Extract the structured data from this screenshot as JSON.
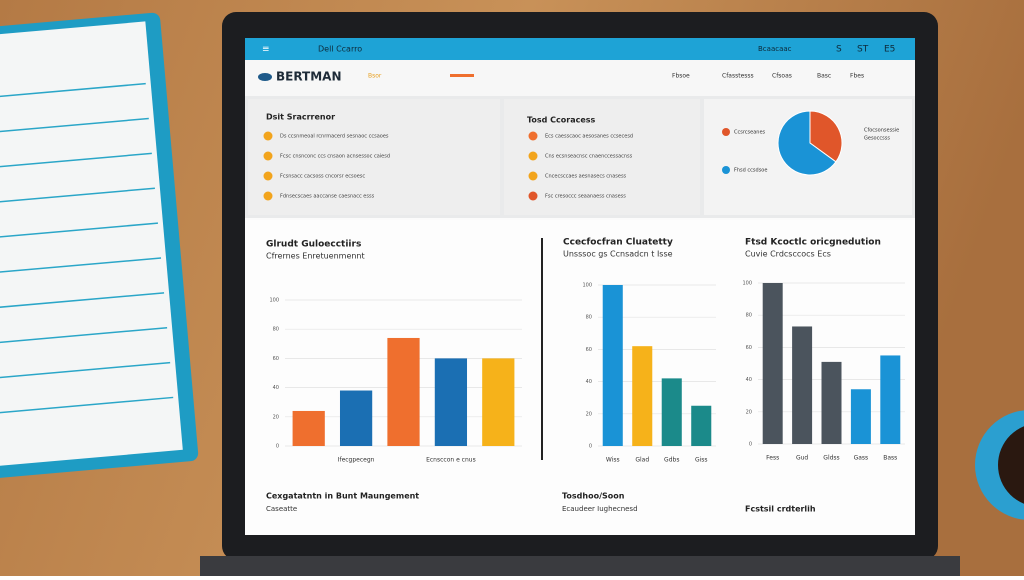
{
  "topbar": {
    "title": "Dell Ccarro",
    "right": [
      "Bcaacaac",
      "S",
      "ST",
      "E5"
    ]
  },
  "header": {
    "logo": "BERTMAN",
    "tag": "Bsor",
    "nav": [
      "Fbsoe",
      "Cfasstesss",
      "Cfsoas",
      "Basc",
      "Fbes"
    ]
  },
  "panels": [
    {
      "title": "Dsit Sracrrenor",
      "items": [
        "Ds ccsnmeoal rcnrmacerd sesnaoc ccsaoes",
        "Fcsc cnsnconc ccs cnsaon acnsessoc caiesd",
        "Fcsnsacc cacsoss cncorsr ecsoesc",
        "Fdnsecscaes aaccanse caesnacc esss"
      ]
    },
    {
      "title": "Tosd Ccoracess",
      "items": [
        "Ecs caesscaoc aesosanes ccsecesd",
        "Cns ecsnseacnsc cnaenccessacnss",
        "Cncecsccaes aesnasecs cnasess",
        "Fsc cresoccc seaanaess cnasess"
      ]
    }
  ],
  "chart_data": [
    {
      "type": "bar",
      "title": "Glrudt Guloecctiirs",
      "subtitle": "Cfrernes Enretuenmennt",
      "categories": [
        null,
        "Ifecgpecegn",
        null,
        "Ecnsccon e cnus",
        null
      ],
      "values": [
        24,
        38,
        74,
        60,
        60
      ],
      "colors": [
        "#ef6f2e",
        "#1b6fb3",
        "#ef6f2e",
        "#1b6fb3",
        "#f6b21a"
      ],
      "ylim": [
        0,
        100
      ],
      "yticks": [
        0,
        20,
        40,
        60,
        80,
        100
      ],
      "grid": true
    },
    {
      "type": "bar",
      "title": "Ccecfocfran Cluatetty",
      "subtitle": "Unsssoc gs Ccnsadcn t Isse",
      "categories": [
        "Wiss",
        "Glad",
        "Gdbs",
        "Giss"
      ],
      "values": [
        100,
        62,
        42,
        25
      ],
      "colors": [
        "#1a93d6",
        "#f6b21a",
        "#1b8a8a",
        "#1b8a8a"
      ],
      "ylim": [
        0,
        100
      ],
      "yticks": [
        0,
        20,
        40,
        60,
        80,
        100
      ],
      "grid": true
    },
    {
      "type": "bar",
      "title": "Ftsd Kcoctlc oricgnedution",
      "subtitle": "Cuvie Crdcsccocs Ecs",
      "categories": [
        "Fess",
        "Gud",
        "Gldss",
        "Gass",
        "Bass"
      ],
      "values": [
        100,
        73,
        51,
        34,
        55
      ],
      "colors": [
        "#4b545d",
        "#4b545d",
        "#4b545d",
        "#1a93d6",
        "#1a93d6"
      ],
      "ylim": [
        0,
        100
      ],
      "yticks": [
        0,
        20,
        40,
        60,
        80,
        100
      ],
      "grid": true
    },
    {
      "type": "pie",
      "categories": [
        "Ccsrcseanes",
        "Fhsd ccsdsoe"
      ],
      "values": [
        35,
        65
      ],
      "colors": [
        "#e0562a",
        "#1a93d6"
      ],
      "legend": [
        "Cfocsonsessie",
        "Gesoccsss"
      ]
    }
  ],
  "footer": [
    {
      "title": "Cexgatatntn in Bunt Maungement",
      "subtitle": "Caseatte"
    },
    {
      "title": "Tosdhoo/Soon",
      "subtitle": "Ecaudeer Iughecnesd"
    },
    {
      "title": "Fcstsil crdterlih",
      "subtitle": ""
    }
  ]
}
